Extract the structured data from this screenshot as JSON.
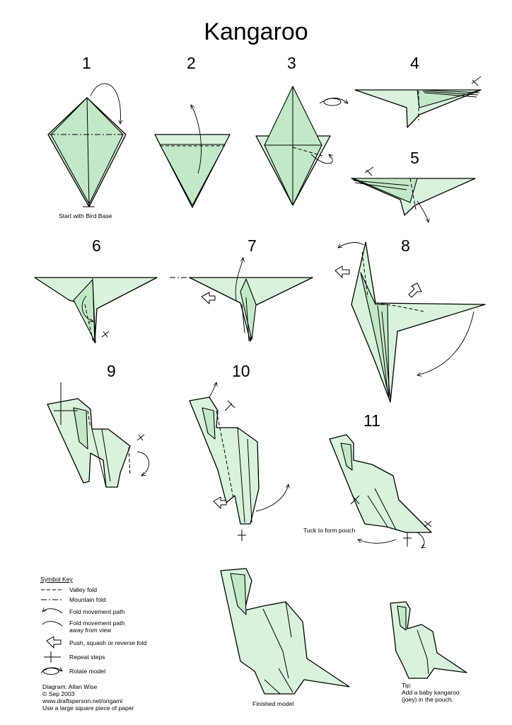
{
  "title": "Kangaroo",
  "steps": [
    "1",
    "2",
    "3",
    "4",
    "5",
    "6",
    "7",
    "8",
    "9",
    "10",
    "11"
  ],
  "captions": {
    "start": "Start with Bird Base",
    "tuck": "Tuck to form pouch",
    "finished": "Finished model"
  },
  "symbol_key": {
    "heading": "Symbol Key",
    "items": [
      {
        "icon": "valley-fold-line",
        "label": "Valley fold"
      },
      {
        "icon": "mountain-fold-line",
        "label": "Mountain fold"
      },
      {
        "icon": "fold-movement-arrow",
        "label": "Fold movement path"
      },
      {
        "icon": "fold-away-arrow",
        "label": "Fold movement path",
        "label2": "away from view"
      },
      {
        "icon": "push-arrow",
        "label": "Push, squash or reverse fold"
      },
      {
        "icon": "repeat-steps-icon",
        "label": "Repeat steps"
      },
      {
        "icon": "rotate-model-icon",
        "label": "Rotate model"
      }
    ]
  },
  "credits": {
    "line1": "Diagram: Allan Wise",
    "line2": "©  Sep 2003",
    "line3": "www.draftsperson.net/origami",
    "line4": "Use a large square piece of paper"
  },
  "tip": {
    "heading": "Tip:",
    "line1": "Add a baby kangaroo",
    "line2": "(joey) in the pouch."
  },
  "colors": {
    "paper": "#d8f2dc",
    "paper_shade": "#c2e8c8",
    "line": "#000000"
  }
}
